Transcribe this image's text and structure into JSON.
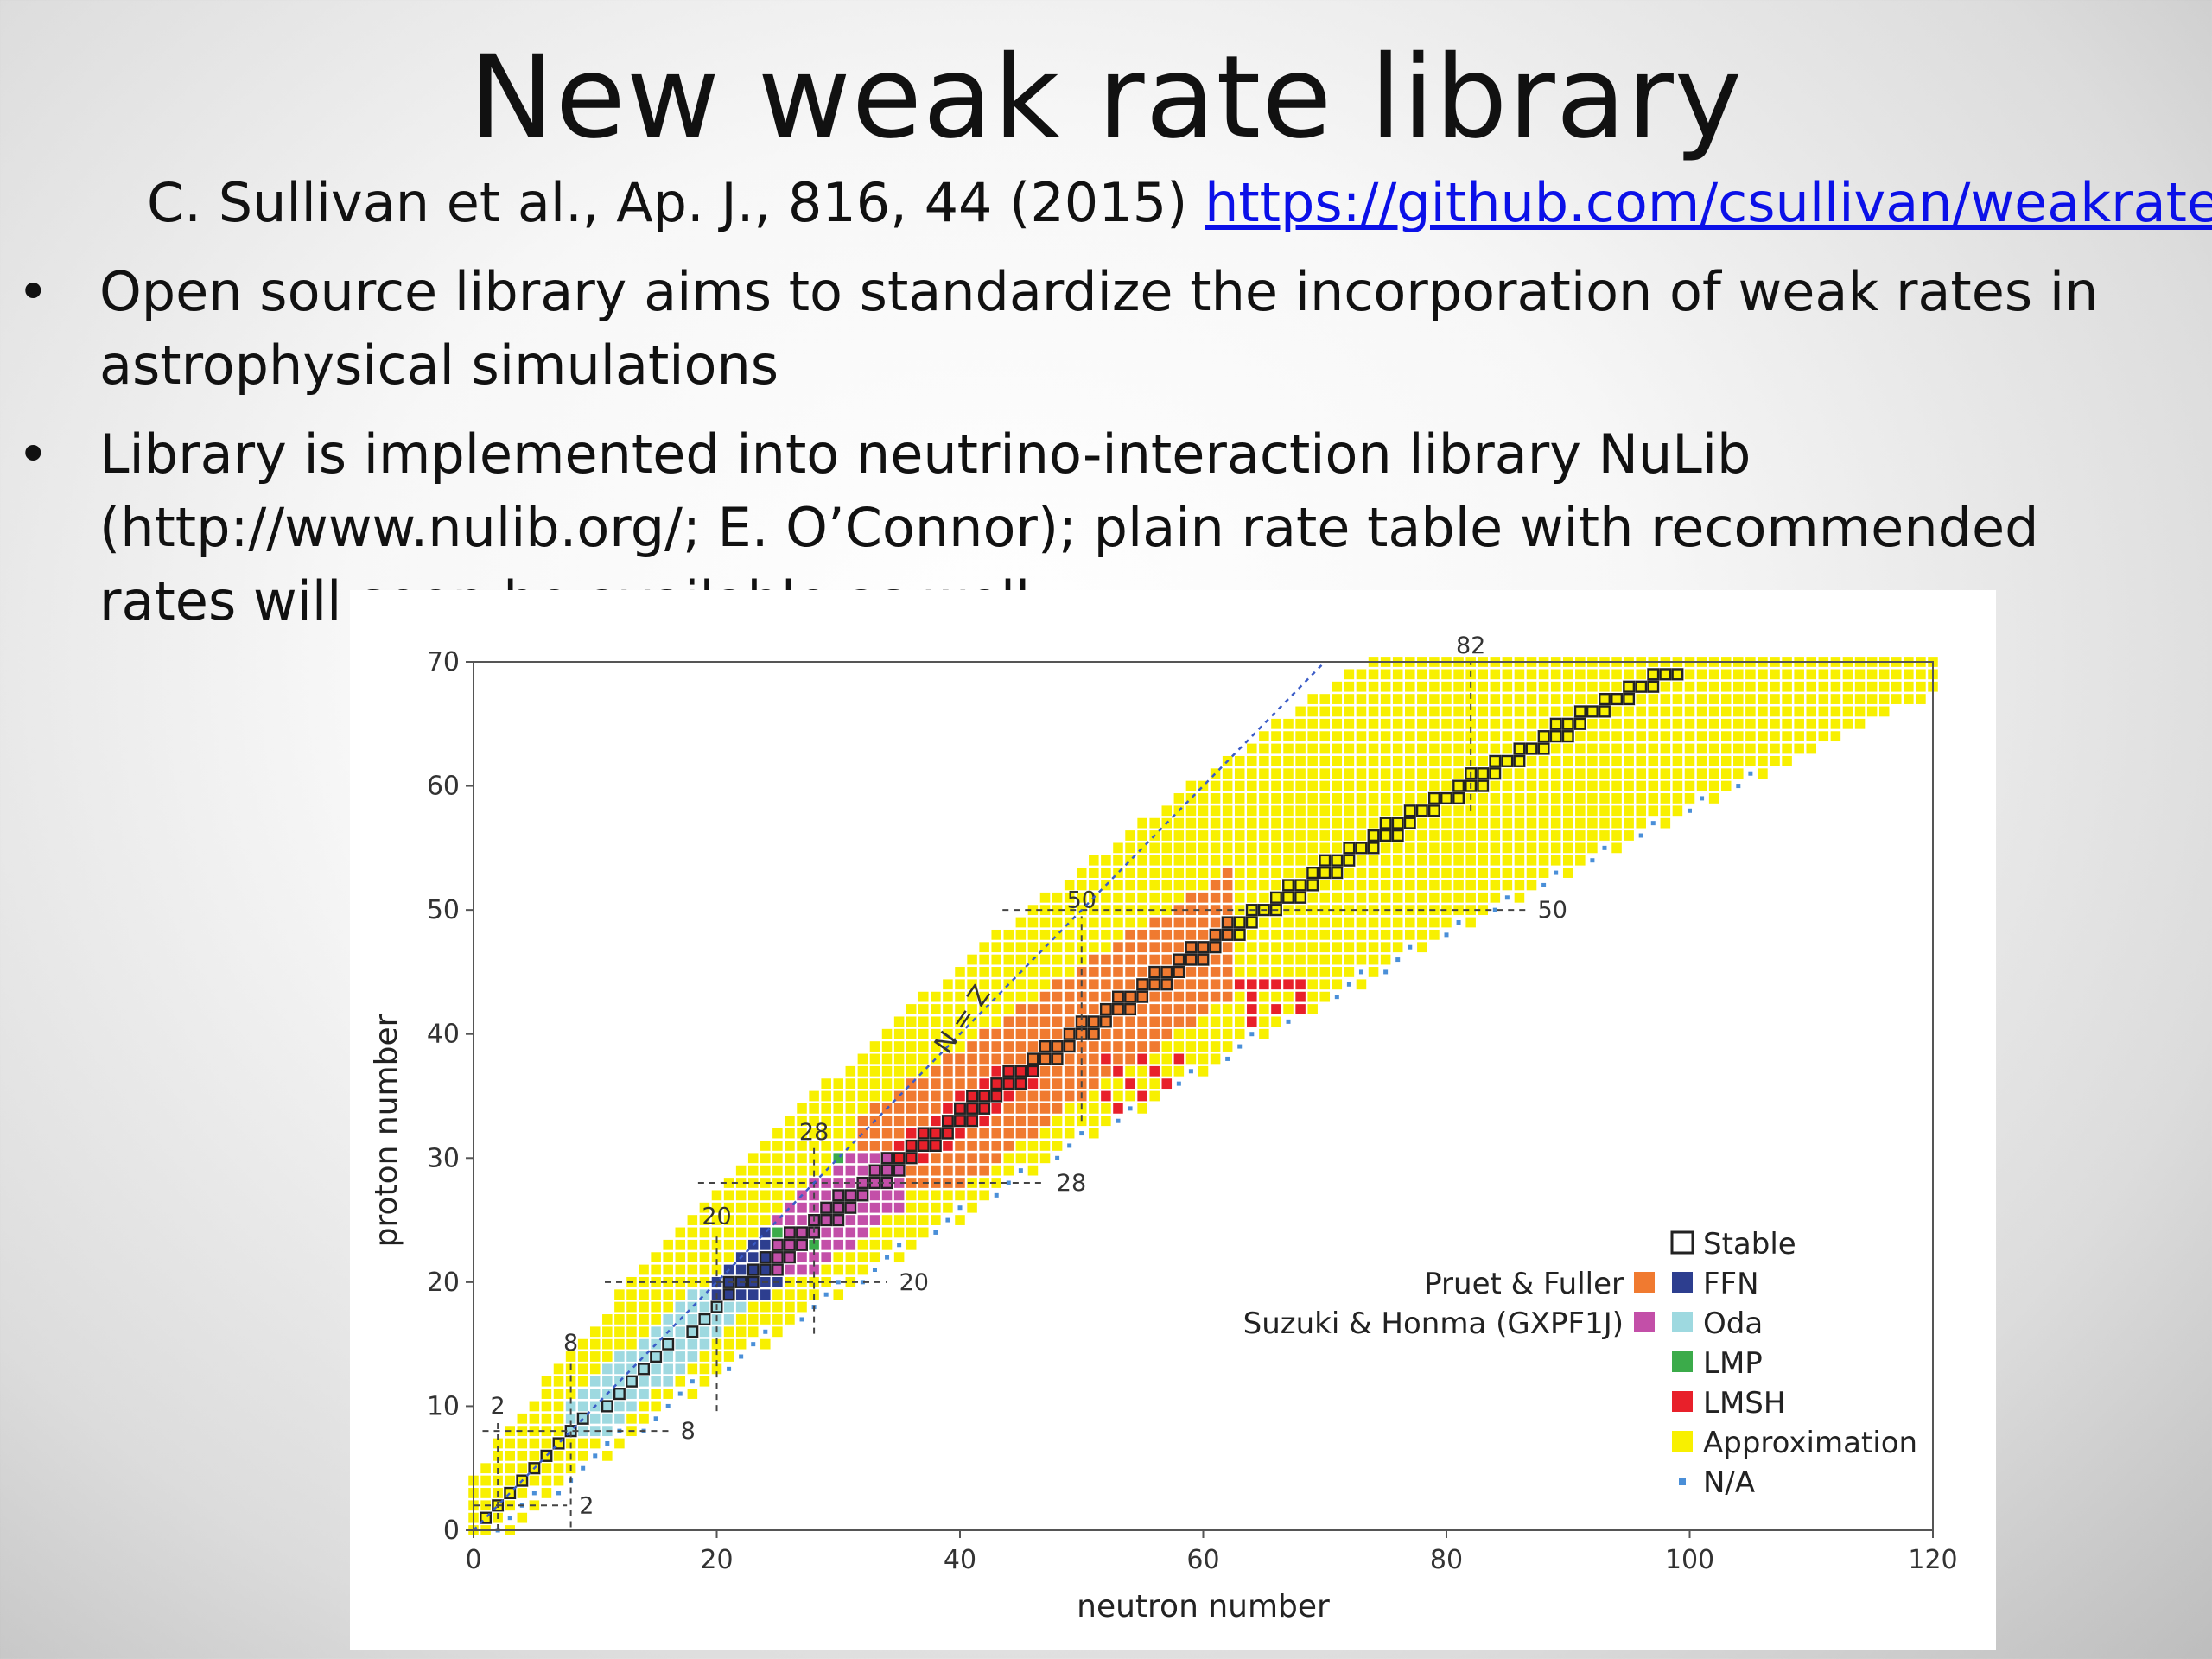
{
  "slide": {
    "title": "New weak rate library",
    "citation_text": "C. Sullivan et al., Ap. J., 816, 44 (2015)",
    "citation_link": "https://github.com/csullivan/weakrates",
    "bullet_glyph": "•",
    "bullets": [
      "Open source library aims to standardize the incorporation of weak rates in astrophysical simulations",
      "Library is implemented into neutrino-interaction library NuLib (http://www.nulib.org/; E. O’Connor); plain rate table with recommended rates will soon be available as well."
    ]
  },
  "chart_data": {
    "type": "heatmap",
    "xlabel": "neutron number",
    "ylabel": "proton number",
    "xlim": [
      0,
      120
    ],
    "ylim": [
      0,
      70
    ],
    "xticks": [
      0,
      20,
      40,
      60,
      80,
      100,
      120
    ],
    "yticks": [
      0,
      10,
      20,
      30,
      40,
      50,
      60,
      70
    ],
    "magic_numbers": [
      2,
      8,
      20,
      28,
      50,
      82
    ],
    "magic_line_labels": {
      "vertical": [
        "2",
        "8",
        "20",
        "28",
        "50",
        "82"
      ],
      "horizontal": [
        "2",
        "8",
        "20",
        "28",
        "50"
      ]
    },
    "diagonal_label": "N = Z",
    "legend_position": "bottom-right",
    "legend": {
      "group_labels": [
        "Pruet & Fuller",
        "Suzuki & Honma (GXPF1J)"
      ],
      "entries": [
        {
          "label": "Stable",
          "color": "#ffffff"
        },
        {
          "label": "FFN",
          "color": "#2d3e8f"
        },
        {
          "label": "Oda",
          "color": "#9ed9e0"
        },
        {
          "label": "LMP",
          "color": "#3bab4a"
        },
        {
          "label": "LMSH",
          "color": "#e8202a"
        },
        {
          "label": "Approximation",
          "color": "#f8f000"
        },
        {
          "label": "N/A",
          "color": "#4a8fd8"
        }
      ],
      "group_colors": [
        "#f07a30",
        "#c34fa8"
      ]
    },
    "colors": {
      "approximation": "#f8f000",
      "pruet_fuller": "#f07a30",
      "suzuki_honma": "#c34fa8",
      "ffn": "#2d3e8f",
      "oda": "#9ed9e0",
      "lmp": "#3bab4a",
      "lmsh": "#e8202a",
      "na": "#4a8fd8",
      "stable_border": "#222222"
    }
  }
}
